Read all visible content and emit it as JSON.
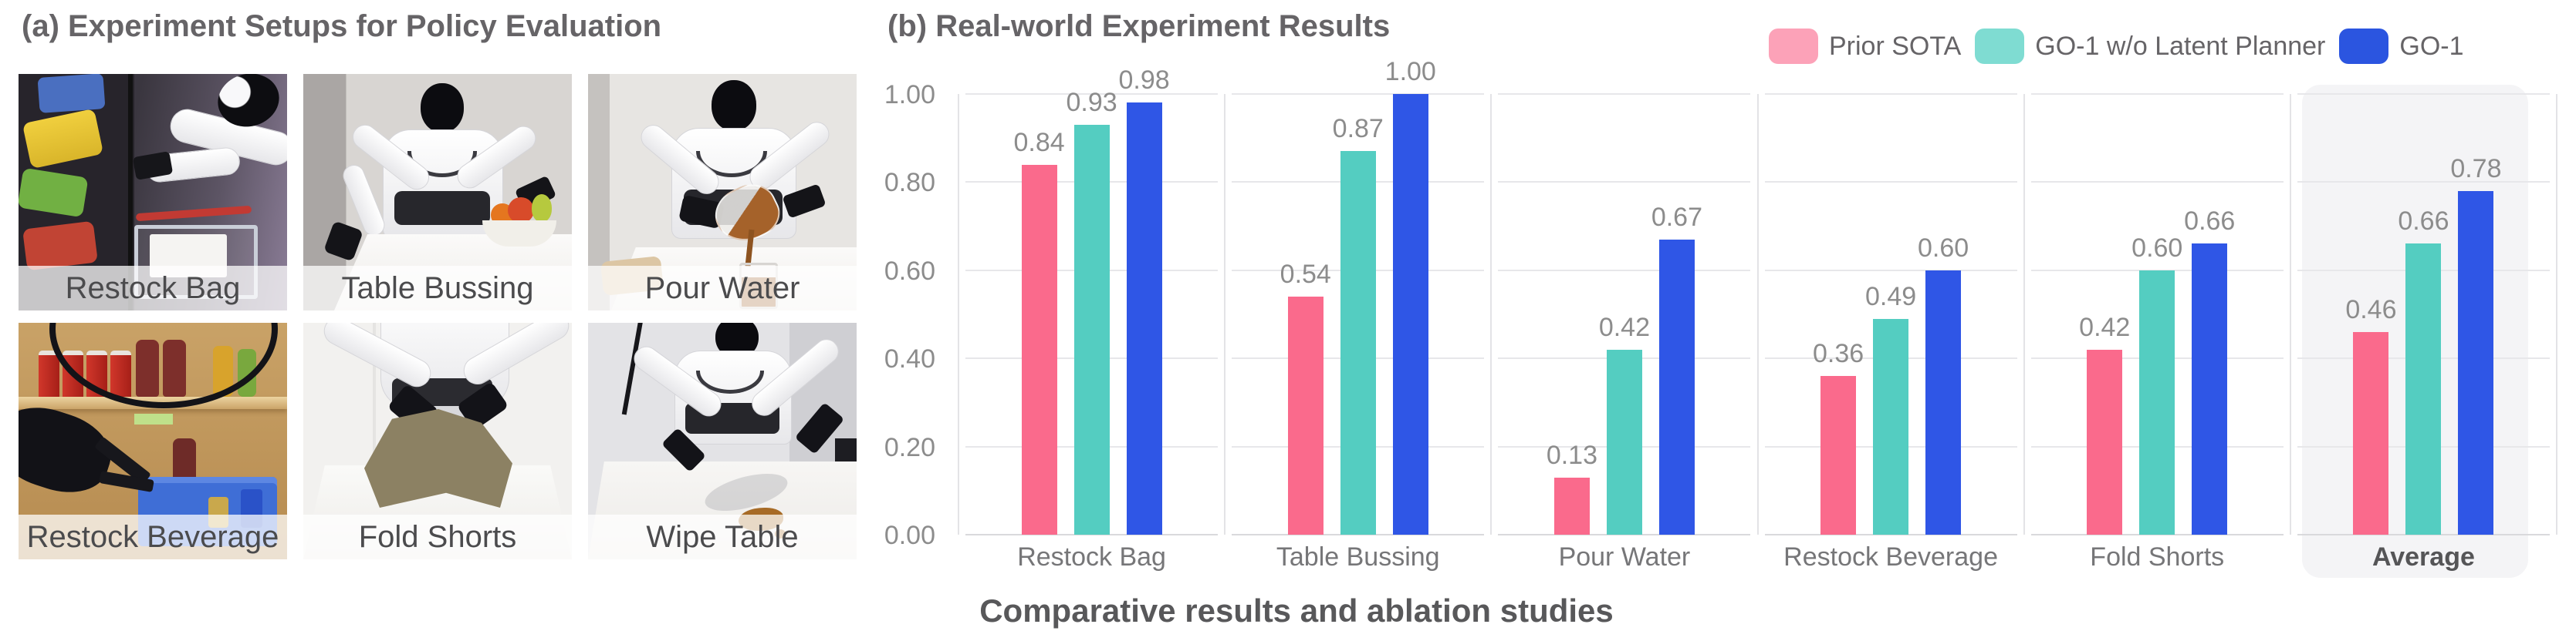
{
  "panel_a": {
    "title": "(a) Experiment Setups for Policy Evaluation",
    "setups": [
      {
        "label": "Restock Bag"
      },
      {
        "label": "Table Bussing"
      },
      {
        "label": "Pour Water"
      },
      {
        "label": "Restock Beverage"
      },
      {
        "label": "Fold Shorts"
      },
      {
        "label": "Wipe Table"
      }
    ]
  },
  "panel_b": {
    "title": "(b) Real-world Experiment Results",
    "caption": "Comparative results and ablation studies",
    "legend": [
      {
        "label": "Prior SOTA",
        "swatch_color": "#FCA2B8"
      },
      {
        "label": "GO-1 w/o Latent Planner",
        "swatch_color": "#7FDCD2"
      },
      {
        "label": "GO-1",
        "swatch_color": "#2B55E0"
      }
    ]
  },
  "chart_data": {
    "type": "bar",
    "title": "(b) Real-world Experiment Results",
    "categories": [
      "Restock Bag",
      "Table Bussing",
      "Pour Water",
      "Restock Beverage",
      "Fold Shorts",
      "Average"
    ],
    "series": [
      {
        "name": "Prior SOTA",
        "color": "#FA6A8C",
        "values": [
          0.84,
          0.54,
          0.13,
          0.36,
          0.42,
          0.46
        ]
      },
      {
        "name": "GO-1 w/o Latent Planner",
        "color": "#54CDC1",
        "values": [
          0.93,
          0.87,
          0.42,
          0.49,
          0.6,
          0.66
        ]
      },
      {
        "name": "GO-1",
        "color": "#2F56E6",
        "values": [
          0.98,
          1.0,
          0.67,
          0.6,
          0.66,
          0.78
        ]
      }
    ],
    "ylabel": "",
    "xlabel": "",
    "yticks": [
      "0.00",
      "0.20",
      "0.40",
      "0.60",
      "0.80",
      "1.00"
    ],
    "ylim": [
      0,
      1.04
    ],
    "grid": true,
    "legend_position": "top-right",
    "highlighted_category": "Average",
    "value_labels": true,
    "gridline_color": "#e7e7ea",
    "baseline_color": "#d9d9dc",
    "highlight_color": "#f4f4f6"
  }
}
